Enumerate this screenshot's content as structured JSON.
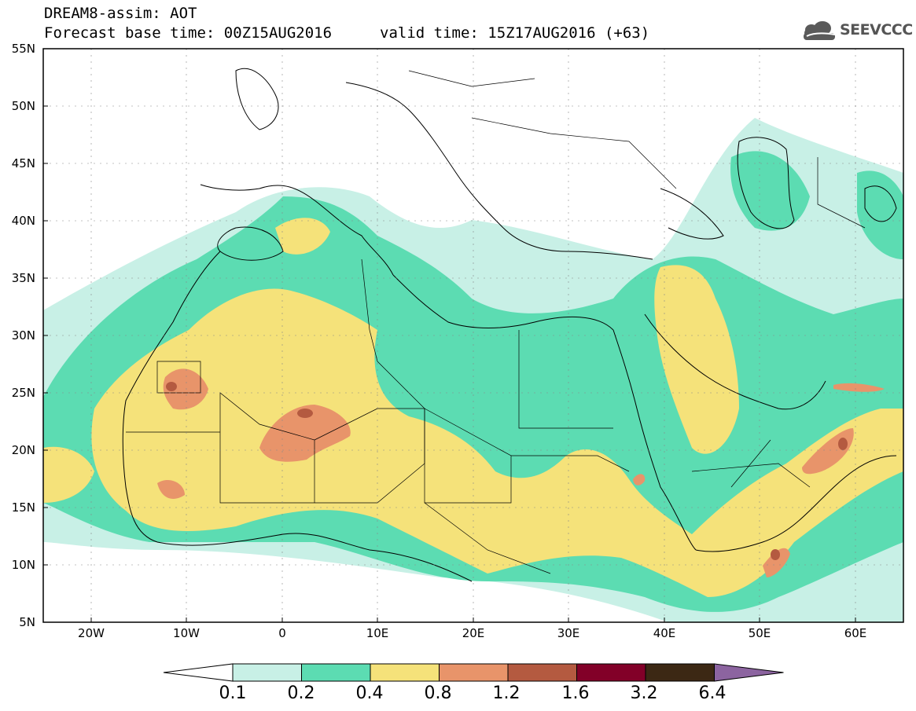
{
  "header": {
    "title": "DREAM8-assim: AOT",
    "base_time": "Forecast base time: 00Z15AUG2016",
    "valid_time": "valid time: 15Z17AUG2016 (+63)"
  },
  "logo": {
    "text": "SEEVCCC",
    "icon": "cloud-icon",
    "color": "#5a5a5a"
  },
  "map": {
    "lat_range": [
      5,
      55
    ],
    "lon_range": [
      -25,
      65
    ],
    "lat_ticks": [
      "55N",
      "50N",
      "45N",
      "40N",
      "35N",
      "30N",
      "25N",
      "20N",
      "15N",
      "10N",
      "5N"
    ],
    "lon_ticks": [
      "20W",
      "10W",
      "0",
      "10E",
      "20E",
      "30E",
      "40E",
      "50E",
      "60E"
    ]
  },
  "legend": {
    "levels": [
      "0.1",
      "0.2",
      "0.4",
      "0.8",
      "1.2",
      "1.6",
      "3.2",
      "6.4"
    ],
    "colors": [
      "#ffffff",
      "#c8f0e6",
      "#5cdcb2",
      "#f5e27a",
      "#e8946a",
      "#b45a40",
      "#820028",
      "#3c2814",
      "#8c64a0"
    ]
  }
}
